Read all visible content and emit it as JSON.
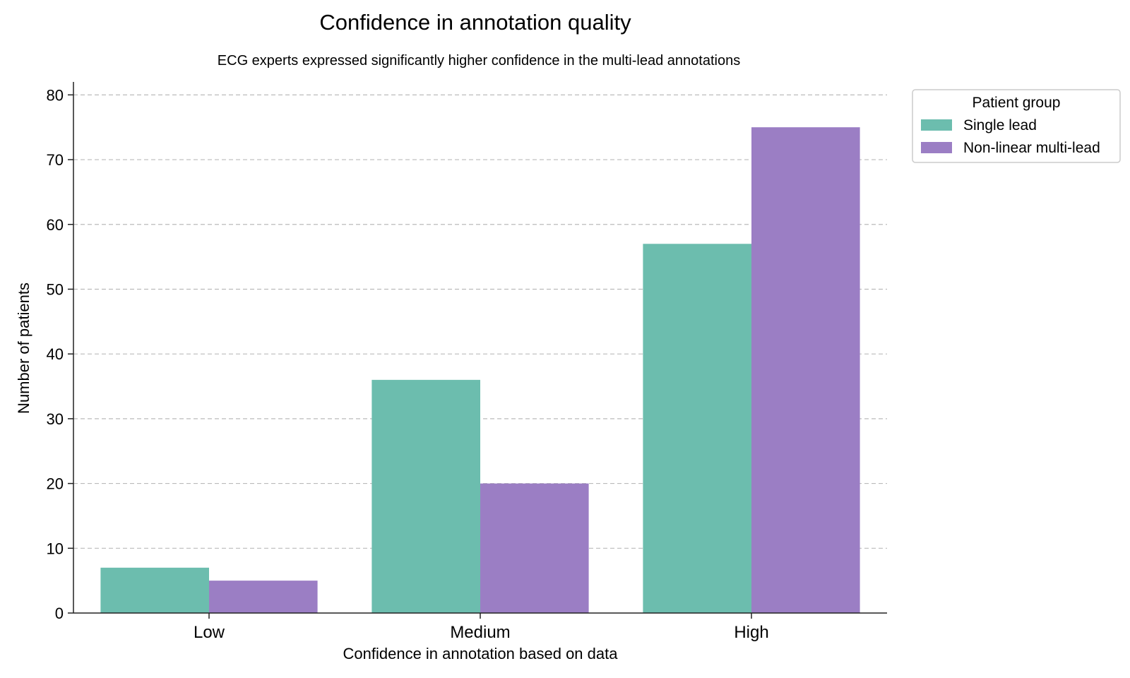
{
  "chart_data": {
    "type": "bar",
    "title": "Confidence in annotation quality",
    "subtitle": "ECG experts expressed significantly higher confidence in the multi-lead annotations",
    "xlabel": "Confidence in annotation based on data",
    "ylabel": "Number of patients",
    "categories": [
      "Low",
      "Medium",
      "High"
    ],
    "series": [
      {
        "name": "Single lead",
        "values": [
          7,
          36,
          57
        ],
        "color": "#6cbdae"
      },
      {
        "name": "Non-linear multi-lead",
        "values": [
          5,
          20,
          75
        ],
        "color": "#9b7ec4"
      }
    ],
    "ylim": [
      0,
      82
    ],
    "yticks": [
      0,
      10,
      20,
      30,
      40,
      50,
      60,
      70,
      80
    ],
    "grid": "y dashed",
    "legend": {
      "title": "Patient group",
      "placement": "top-right outside"
    }
  }
}
